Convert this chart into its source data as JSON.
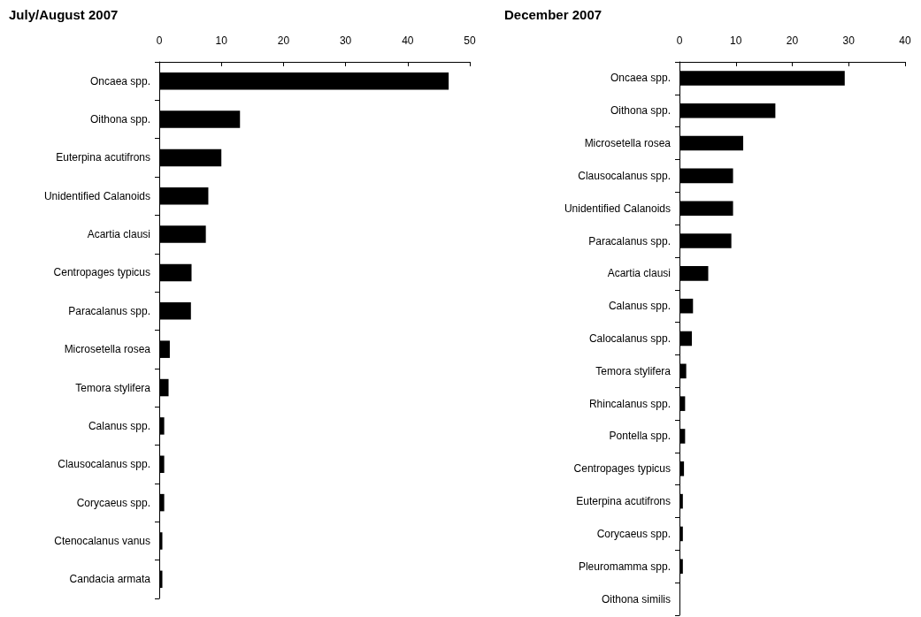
{
  "chart_data": [
    {
      "type": "bar",
      "orientation": "horizontal",
      "title": "July/August 2007",
      "color": "#000000",
      "grid": false,
      "xlim": [
        0,
        50
      ],
      "xticks": [
        0,
        10,
        20,
        30,
        40,
        50
      ],
      "categories": [
        "Oncaea spp.",
        "Oithona spp.",
        "Euterpina acutifrons",
        "Unidentified Calanoids",
        "Acartia clausi",
        "Centropages typicus",
        "Paracalanus spp.",
        "Microsetella rosea",
        "Temora stylifera",
        "Calanus spp.",
        "Clausocalanus spp.",
        "Corycaeus spp.",
        "Ctenocalanus vanus",
        "Candacia armata"
      ],
      "values": [
        46.6,
        13.0,
        10.0,
        7.9,
        7.5,
        5.2,
        5.1,
        1.7,
        1.5,
        0.8,
        0.8,
        0.8,
        0.5,
        0.5
      ]
    },
    {
      "type": "bar",
      "orientation": "horizontal",
      "title": "December 2007",
      "color": "#000000",
      "grid": false,
      "xlim": [
        0,
        40
      ],
      "xticks": [
        0,
        10,
        20,
        30,
        40
      ],
      "categories": [
        "Oncaea spp.",
        "Oithona spp.",
        "Microsetella rosea",
        "Clausocalanus spp.",
        "Unidentified Calanoids",
        "Paracalanus spp.",
        "Acartia clausi",
        "Calanus spp.",
        "Calocalanus spp.",
        "Temora stylifera",
        "Rhincalanus spp.",
        "Pontella spp.",
        "Centropages typicus",
        "Euterpina acutifrons",
        "Corycaeus spp.",
        "Pleuromamma spp.",
        "Oithona similis"
      ],
      "values": [
        29.3,
        17.0,
        11.3,
        9.5,
        9.5,
        9.2,
        5.1,
        2.4,
        2.2,
        1.2,
        1.0,
        1.0,
        0.8,
        0.6,
        0.6,
        0.6,
        0
      ]
    }
  ]
}
